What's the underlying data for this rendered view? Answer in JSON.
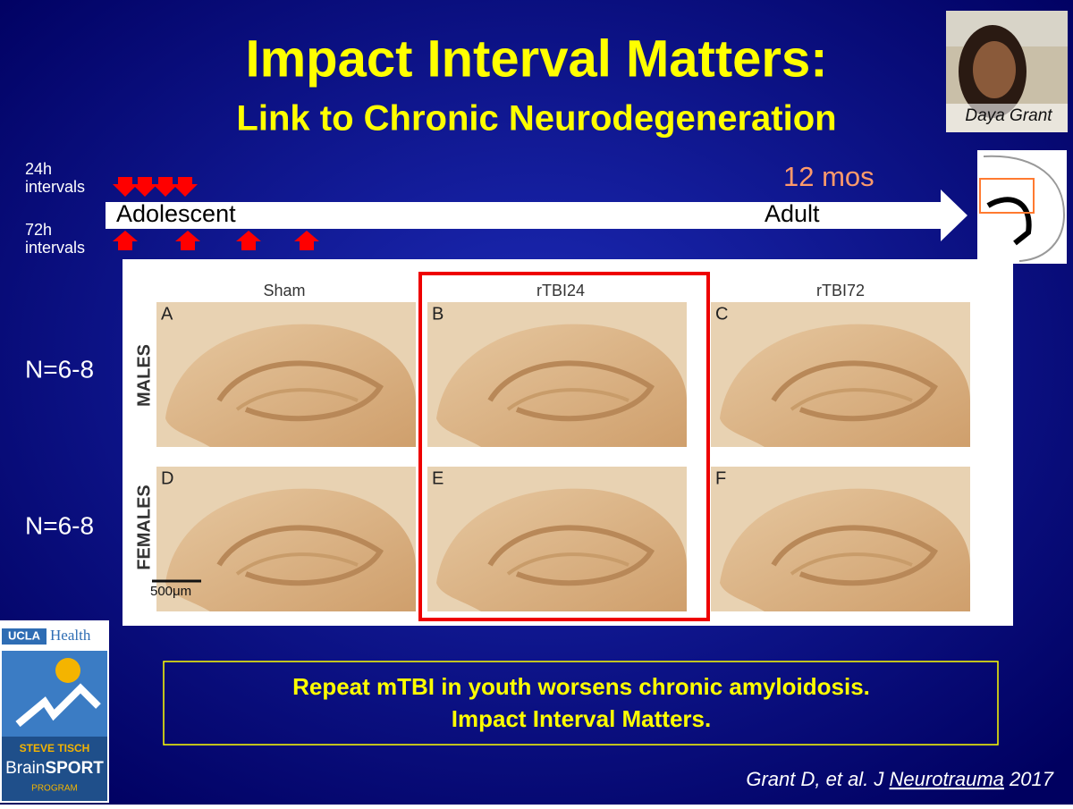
{
  "title": {
    "line1": "Impact Interval Matters:",
    "line2": "Link to Chronic Neurodegeneration"
  },
  "photo": {
    "caption": "Daya Grant"
  },
  "timeline": {
    "interval_24h": [
      "24h",
      "intervals"
    ],
    "interval_72h": [
      "72h",
      "intervals"
    ],
    "duration": "12 mos",
    "start": "Adolescent",
    "end": "Adult"
  },
  "figure": {
    "columns": [
      "Sham",
      "rTBI24",
      "rTBI72"
    ],
    "rows": [
      "MALES",
      "FEMALES"
    ],
    "panels": [
      "A",
      "B",
      "C",
      "D",
      "E",
      "F"
    ],
    "scale_bar": "500μm"
  },
  "sample_sizes": [
    "N=6-8",
    "N=6-8"
  ],
  "conclusion": [
    "Repeat mTBI in youth worsens chronic amyloidosis.",
    "Impact Interval Matters."
  ],
  "logo": {
    "ucla": "UCLA",
    "health": "Health",
    "line1": "STEVE TISCH",
    "brain": "Brain",
    "sport": "SPORT",
    "program": "PROGRAM"
  },
  "citation": {
    "prefix": "Grant D, et al. J ",
    "journal": "Neurotrauma",
    "year": "2017"
  }
}
